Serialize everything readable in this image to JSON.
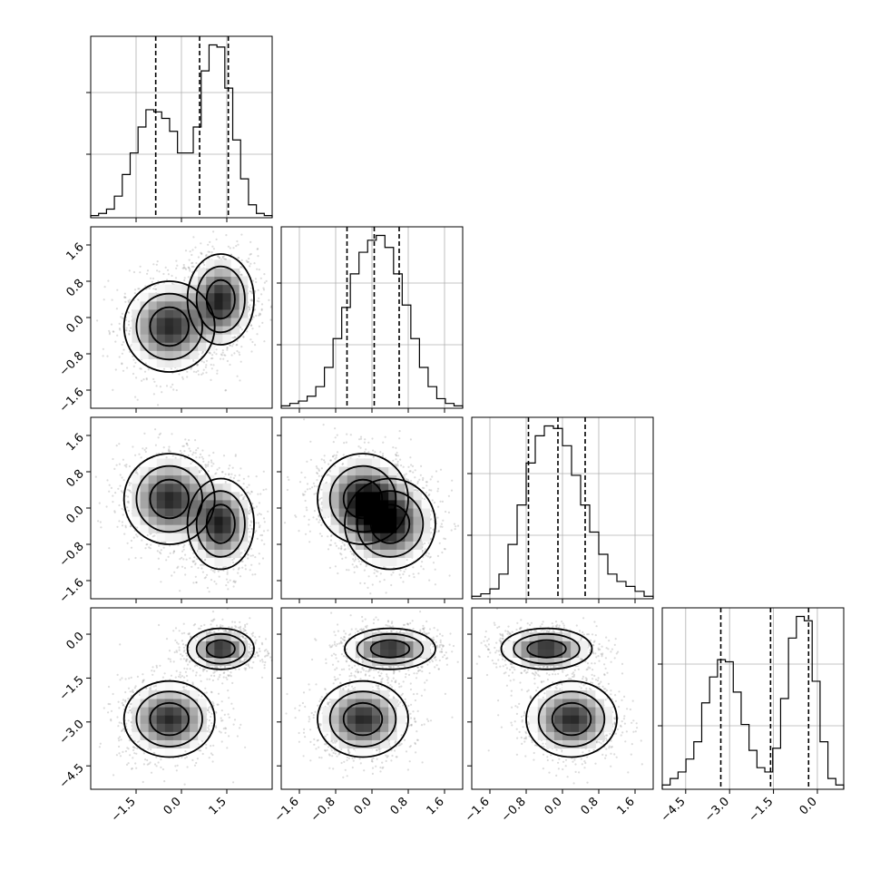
{
  "chart_data": {
    "type": "corner",
    "dims": 4,
    "ranges": [
      [
        -3.0,
        3.0
      ],
      [
        -2.0,
        2.0
      ],
      [
        -2.0,
        2.0
      ],
      [
        -5.3,
        0.9
      ]
    ],
    "axis_ticks": [
      {
        "values": [
          -1.5,
          0.0,
          1.5
        ],
        "labels": [
          "−1.5",
          "0.0",
          "1.5"
        ]
      },
      {
        "values": [
          -1.6,
          -0.8,
          0.0,
          0.8,
          1.6
        ],
        "labels": [
          "−1.6",
          "−0.8",
          "0.0",
          "0.8",
          "1.6"
        ]
      },
      {
        "values": [
          -1.6,
          -0.8,
          0.0,
          0.8,
          1.6
        ],
        "labels": [
          "−1.6",
          "−0.8",
          "0.0",
          "0.8",
          "1.6"
        ]
      },
      {
        "values": [
          -4.5,
          -3.0,
          -1.5,
          0.0
        ],
        "labels": [
          "−4.5",
          "−3.0",
          "−1.5",
          "0.0"
        ]
      }
    ],
    "quantiles": [
      [
        -0.85,
        0.6,
        1.55
      ],
      [
        -0.55,
        0.05,
        0.6
      ],
      [
        -0.75,
        -0.1,
        0.5
      ],
      [
        -3.3,
        -1.6,
        -0.3
      ]
    ],
    "histograms": [
      {
        "values": [
          1,
          2,
          4,
          10,
          20,
          30,
          42,
          50,
          49,
          46,
          40,
          30,
          30,
          42,
          68,
          80,
          79,
          60,
          36,
          18,
          6,
          2,
          1
        ]
      },
      {
        "values": [
          1,
          2,
          3,
          5,
          9,
          17,
          29,
          42,
          56,
          65,
          70,
          72,
          67,
          56,
          43,
          29,
          17,
          9,
          4,
          2,
          1
        ]
      },
      {
        "values": [
          1,
          2,
          4,
          10,
          22,
          38,
          55,
          66,
          70,
          69,
          62,
          50,
          38,
          27,
          18,
          10,
          7,
          5,
          3,
          1
        ]
      },
      {
        "values": [
          2,
          5,
          8,
          14,
          22,
          40,
          52,
          60,
          59,
          45,
          30,
          18,
          10,
          8,
          19,
          42,
          70,
          80,
          78,
          50,
          22,
          5,
          2
        ]
      }
    ],
    "components": [
      {
        "mean": [
          -0.4,
          -0.2,
          0.2,
          -2.9
        ],
        "std": [
          0.75,
          0.5,
          0.5,
          0.65
        ]
      },
      {
        "mean": [
          1.3,
          0.4,
          -0.35,
          -0.5
        ],
        "std": [
          0.55,
          0.5,
          0.5,
          0.35
        ]
      }
    ]
  }
}
